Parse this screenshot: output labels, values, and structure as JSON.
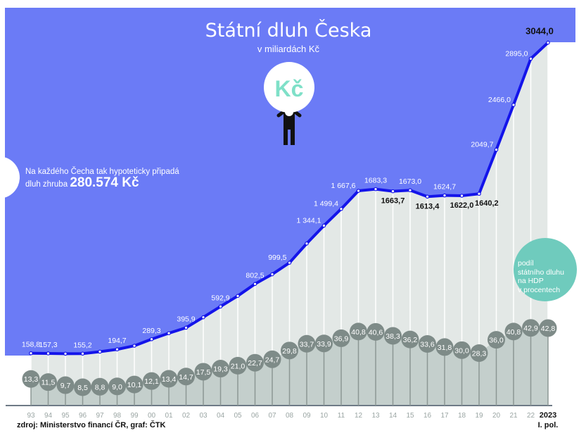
{
  "title": "Státní dluh Česka",
  "subtitle": "v miliardách Kč",
  "icon": {
    "name": "person-holding-coin-icon",
    "coin_label": "Kč"
  },
  "note": {
    "text": "Na každého Čecha tak hypoteticky připadá",
    "text2": "dluh zhruba",
    "amount": "280.574 Kč"
  },
  "gdp_legend": [
    "podíl",
    "státního dluhu",
    "na HDP",
    "v procentech"
  ],
  "source": "zdroj: Ministerstvo financí ČR, graf: ČTK",
  "colors": {
    "panel": "#6b7bf6",
    "line": "#1414ea",
    "gdp_circle": "#7e8b88",
    "gdp_area": "#c4cfcc",
    "debt_area": "#e3e8e6",
    "legend_circle": "#6fcbbd",
    "coin_text": "#7fe0c8"
  },
  "chart_data": [
    {
      "type": "line",
      "title": "Státní dluh Česka",
      "subtitle": "v miliardách Kč",
      "categories": [
        "93",
        "94",
        "95",
        "96",
        "97",
        "98",
        "99",
        "00",
        "01",
        "02",
        "03",
        "04",
        "05",
        "06",
        "07",
        "08",
        "09",
        "10",
        "11",
        "12",
        "13",
        "14",
        "15",
        "16",
        "17",
        "18",
        "19",
        "20",
        "21",
        "22",
        "2023"
      ],
      "category_last_sub": "I. pol.",
      "values": [
        158.8,
        157.3,
        154.4,
        155.2,
        173.1,
        194.7,
        228.4,
        289.3,
        345.0,
        395.9,
        493.2,
        592.9,
        691.2,
        802.5,
        892.3,
        999.5,
        1178.2,
        1344.1,
        1499.4,
        1667.6,
        1683.3,
        1663.7,
        1673.0,
        1613.4,
        1624.7,
        1622.0,
        1640.2,
        2049.7,
        2466.0,
        2895.0,
        3044.0
      ],
      "labels": [
        "158,8",
        "157,3",
        "",
        "155,2",
        "",
        "194,7",
        "",
        "289,3",
        "",
        "395,9",
        "",
        "592,9",
        "",
        "802,5",
        "",
        "999,5",
        "",
        "1 344,1",
        "1 499,4",
        "1 667,6",
        "1683,3",
        "1663,7",
        "1673,0",
        "1613,4",
        "1624,7",
        "1622,0",
        "1640,2",
        "2049,7",
        "2466,0",
        "2895,0",
        "3044,0"
      ],
      "grid": false
    },
    {
      "type": "lollipop",
      "name": "podíl státního dluhu na HDP v procentech",
      "categories": [
        "93",
        "94",
        "95",
        "96",
        "97",
        "98",
        "99",
        "00",
        "01",
        "02",
        "03",
        "04",
        "05",
        "06",
        "07",
        "08",
        "09",
        "10",
        "11",
        "12",
        "13",
        "14",
        "15",
        "16",
        "17",
        "18",
        "19",
        "20",
        "21",
        "22",
        "2023"
      ],
      "values": [
        13.3,
        11.5,
        9.7,
        8.5,
        8.8,
        9.0,
        10.1,
        12.1,
        13.4,
        14.7,
        17.5,
        19.3,
        21.0,
        22.7,
        24.7,
        29.8,
        33.7,
        33.9,
        36.9,
        40.8,
        40.6,
        38.3,
        36.2,
        33.6,
        31.8,
        30.0,
        28.3,
        36.0,
        40.8,
        42.9,
        42.8
      ],
      "labels": [
        "13,3",
        "11,5",
        "9,7",
        "8,5",
        "8,8",
        "9,0",
        "10,1",
        "12,1",
        "13,4",
        "14,7",
        "17,5",
        "19,3",
        "21,0",
        "22,7",
        "24,7",
        "29,8",
        "33,7",
        "33,9",
        "36,9",
        "40,8",
        "40,6",
        "38,3",
        "36,2",
        "33,6",
        "31,8",
        "30,0",
        "28,3",
        "36,0",
        "40,8",
        "42,9",
        "42,8"
      ]
    }
  ]
}
